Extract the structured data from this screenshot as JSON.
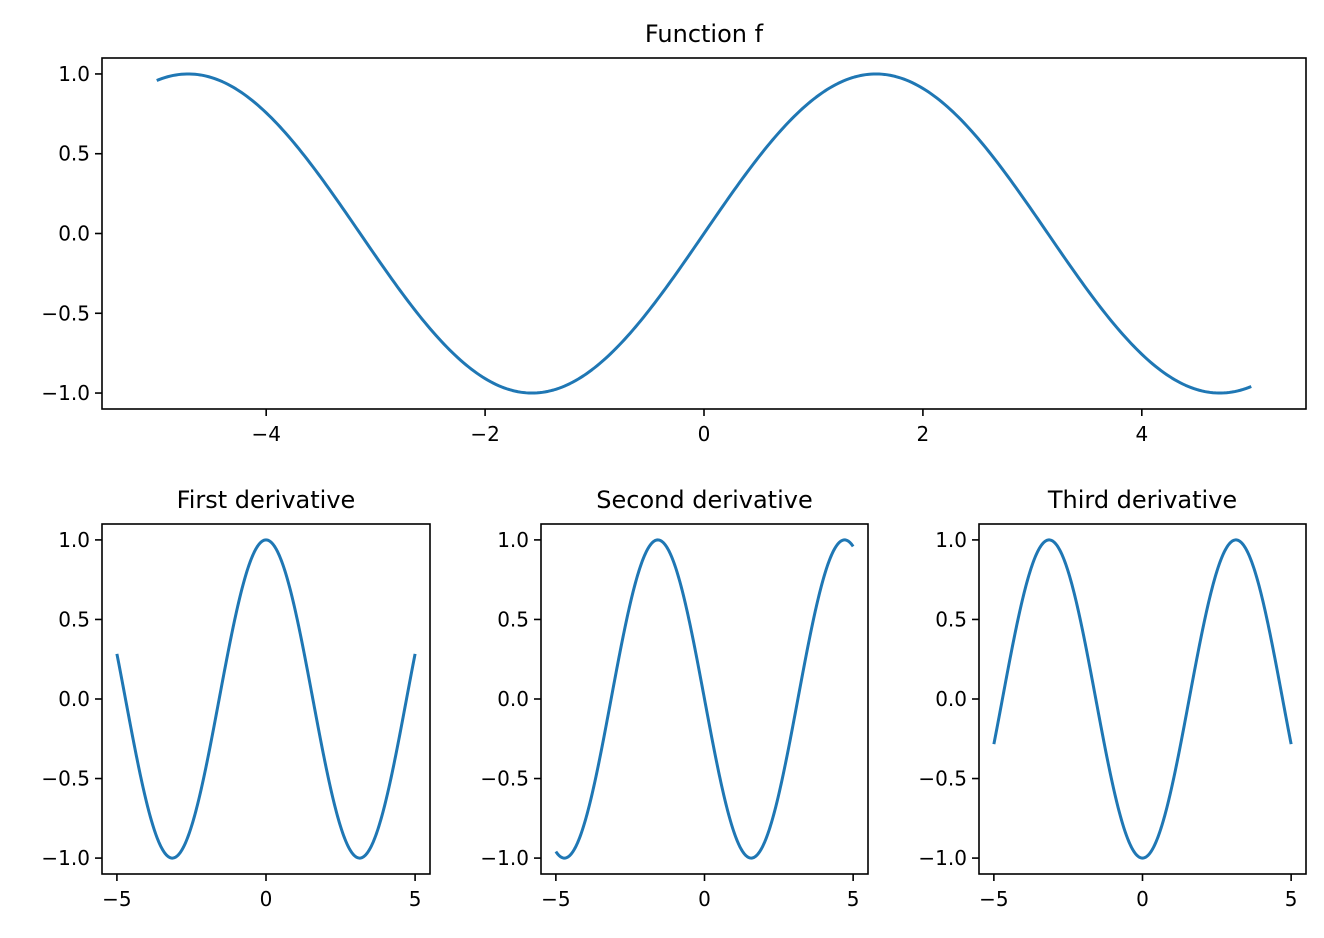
{
  "figure": {
    "line_color": "#1f77b4"
  },
  "chart_data": [
    {
      "type": "line",
      "title": "Function f",
      "function": "sin",
      "x_range": [
        -5,
        5
      ],
      "xlim": [
        -5.5,
        5.5
      ],
      "ylim": [
        -1.1,
        1.1
      ],
      "xticks": [
        -4,
        -2,
        0,
        2,
        4
      ],
      "yticks": [
        -1.0,
        -0.5,
        0.0,
        0.5,
        1.0
      ],
      "xtick_labels": [
        "−4",
        "−2",
        "0",
        "2",
        "4"
      ],
      "ytick_labels": [
        "−1.0",
        "−0.5",
        "0.0",
        "0.5",
        "1.0"
      ],
      "grid": false,
      "series": [
        {
          "color": "#1f77b4"
        }
      ]
    },
    {
      "type": "line",
      "title": "First derivative",
      "function": "cos",
      "x_range": [
        -5,
        5
      ],
      "xlim": [
        -5.5,
        5.5
      ],
      "ylim": [
        -1.1,
        1.1
      ],
      "xticks": [
        -5,
        0,
        5
      ],
      "yticks": [
        -1.0,
        -0.5,
        0.0,
        0.5,
        1.0
      ],
      "xtick_labels": [
        "−5",
        "0",
        "5"
      ],
      "ytick_labels": [
        "−1.0",
        "−0.5",
        "0.0",
        "0.5",
        "1.0"
      ],
      "grid": false,
      "series": [
        {
          "color": "#1f77b4"
        }
      ]
    },
    {
      "type": "line",
      "title": "Second derivative",
      "function": "-sin",
      "x_range": [
        -5,
        5
      ],
      "xlim": [
        -5.5,
        5.5
      ],
      "ylim": [
        -1.1,
        1.1
      ],
      "xticks": [
        -5,
        0,
        5
      ],
      "yticks": [
        -1.0,
        -0.5,
        0.0,
        0.5,
        1.0
      ],
      "xtick_labels": [
        "−5",
        "0",
        "5"
      ],
      "ytick_labels": [
        "−1.0",
        "−0.5",
        "0.0",
        "0.5",
        "1.0"
      ],
      "grid": false,
      "series": [
        {
          "color": "#1f77b4"
        }
      ]
    },
    {
      "type": "line",
      "title": "Third derivative",
      "function": "-cos",
      "x_range": [
        -5,
        5
      ],
      "xlim": [
        -5.5,
        5.5
      ],
      "ylim": [
        -1.1,
        1.1
      ],
      "xticks": [
        -5,
        0,
        5
      ],
      "yticks": [
        -1.0,
        -0.5,
        0.0,
        0.5,
        1.0
      ],
      "xtick_labels": [
        "−5",
        "0",
        "5"
      ],
      "ytick_labels": [
        "−1.0",
        "−0.5",
        "0.0",
        "0.5",
        "1.0"
      ],
      "grid": false,
      "series": [
        {
          "color": "#1f77b4"
        }
      ]
    }
  ]
}
